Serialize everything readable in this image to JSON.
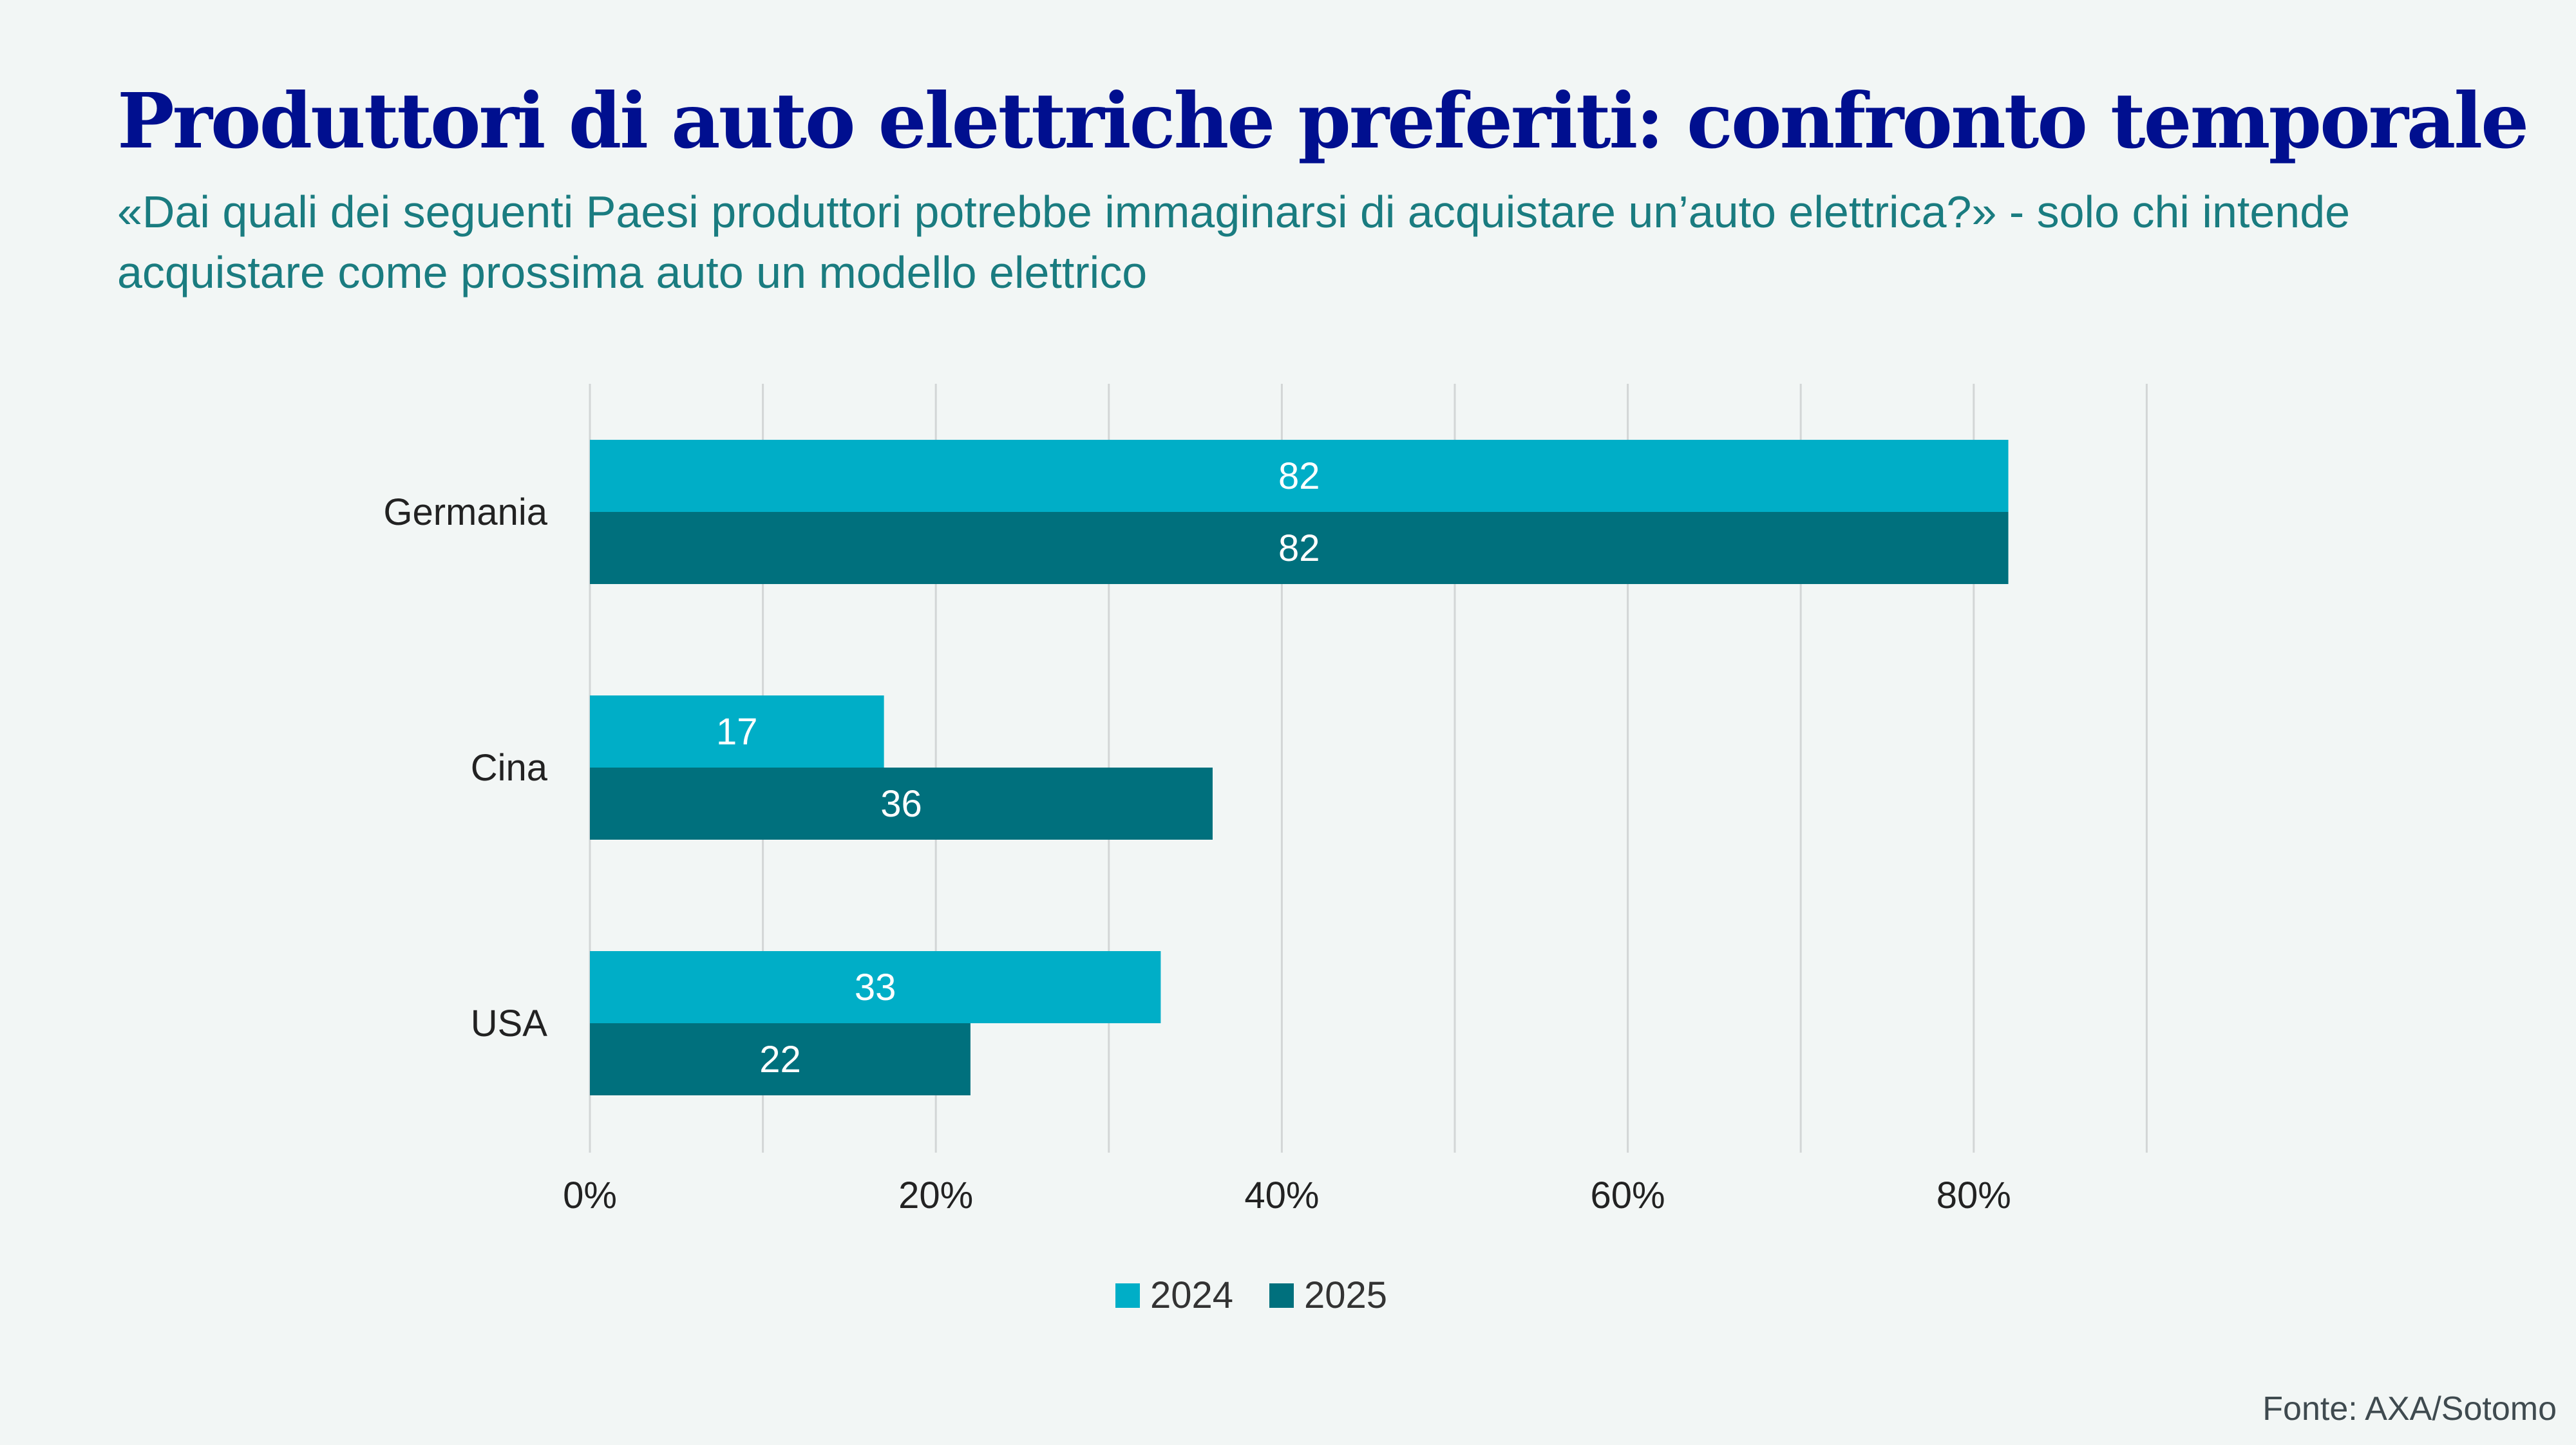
{
  "header": {
    "title": "Produttori di auto elettriche preferiti: confronto temporale",
    "subtitle": "«Dai quali dei seguenti Paesi produttori potrebbe immaginarsi di acquistare un’auto elettrica?» - solo chi intende acquistare come prossima auto un modello elettrico"
  },
  "source": "Fonte: AXA/Sotomo",
  "colors": {
    "series_2024": "#00aec7",
    "series_2025": "#00707d",
    "grid": "#d3d6d6",
    "background": "#f2f6f5"
  },
  "chart_data": {
    "type": "bar",
    "orientation": "horizontal",
    "categories": [
      "Germania",
      "Cina",
      "USA"
    ],
    "series": [
      {
        "name": "2024",
        "values": [
          82,
          17,
          33
        ]
      },
      {
        "name": "2025",
        "values": [
          82,
          36,
          22
        ]
      }
    ],
    "xlim": [
      0,
      90
    ],
    "x_ticks": [
      0,
      20,
      40,
      60,
      80
    ],
    "x_tick_labels": [
      "0%",
      "20%",
      "40%",
      "60%",
      "80%"
    ],
    "grid": true,
    "legend_position": "bottom"
  }
}
